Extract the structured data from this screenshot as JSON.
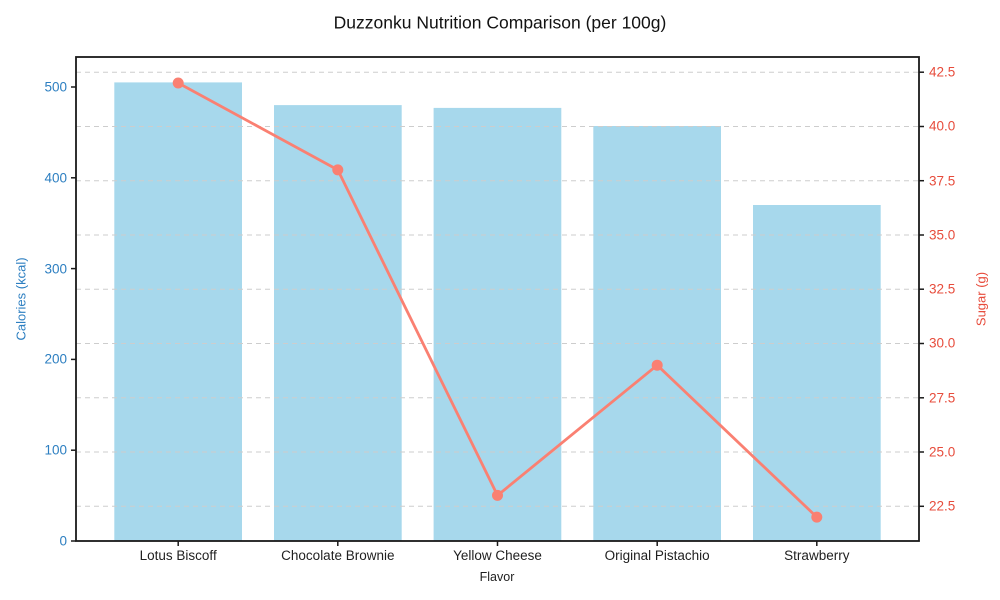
{
  "chart_data": {
    "type": "bar",
    "combo": [
      "bar",
      "line"
    ],
    "title": "Duzzonku Nutrition Comparison (per 100g)",
    "xlabel": "Flavor",
    "categories": [
      "Lotus Biscoff",
      "Chocolate Brownie",
      "Yellow Cheese",
      "Original Pistachio",
      "Strawberry"
    ],
    "series": [
      {
        "name": "Calories (kcal)",
        "type": "bar",
        "axis": "left",
        "values": [
          505,
          480,
          477,
          457,
          370
        ],
        "color": "#a7d8ec"
      },
      {
        "name": "Sugar (g)",
        "type": "line",
        "axis": "right",
        "values": [
          42,
          38,
          23,
          29,
          22
        ],
        "color": "#fa8072",
        "marker": "circle"
      }
    ],
    "left_axis": {
      "label": "Calories (kcal)",
      "color": "#2d7fc1",
      "tick_labels": [
        "0",
        "100",
        "200",
        "300",
        "400",
        "500"
      ],
      "ticks": [
        0,
        100,
        200,
        300,
        400,
        500
      ],
      "lim": [
        0,
        533
      ]
    },
    "right_axis": {
      "label": "Sugar (g)",
      "color": "#e74c3c",
      "tick_labels": [
        "22.5",
        "25.0",
        "27.5",
        "30.0",
        "32.5",
        "35.0",
        "37.5",
        "40.0",
        "42.5"
      ],
      "ticks": [
        22.5,
        25.0,
        27.5,
        30.0,
        32.5,
        35.0,
        37.5,
        40.0,
        42.5
      ],
      "lim": [
        20.9,
        43.2
      ]
    },
    "grid": {
      "on": true,
      "which_axis": "right",
      "style": "dashed",
      "color": "#cdcdcd"
    },
    "legend": "none",
    "frame_color": "#1a1a1a",
    "background": "#ffffff"
  }
}
